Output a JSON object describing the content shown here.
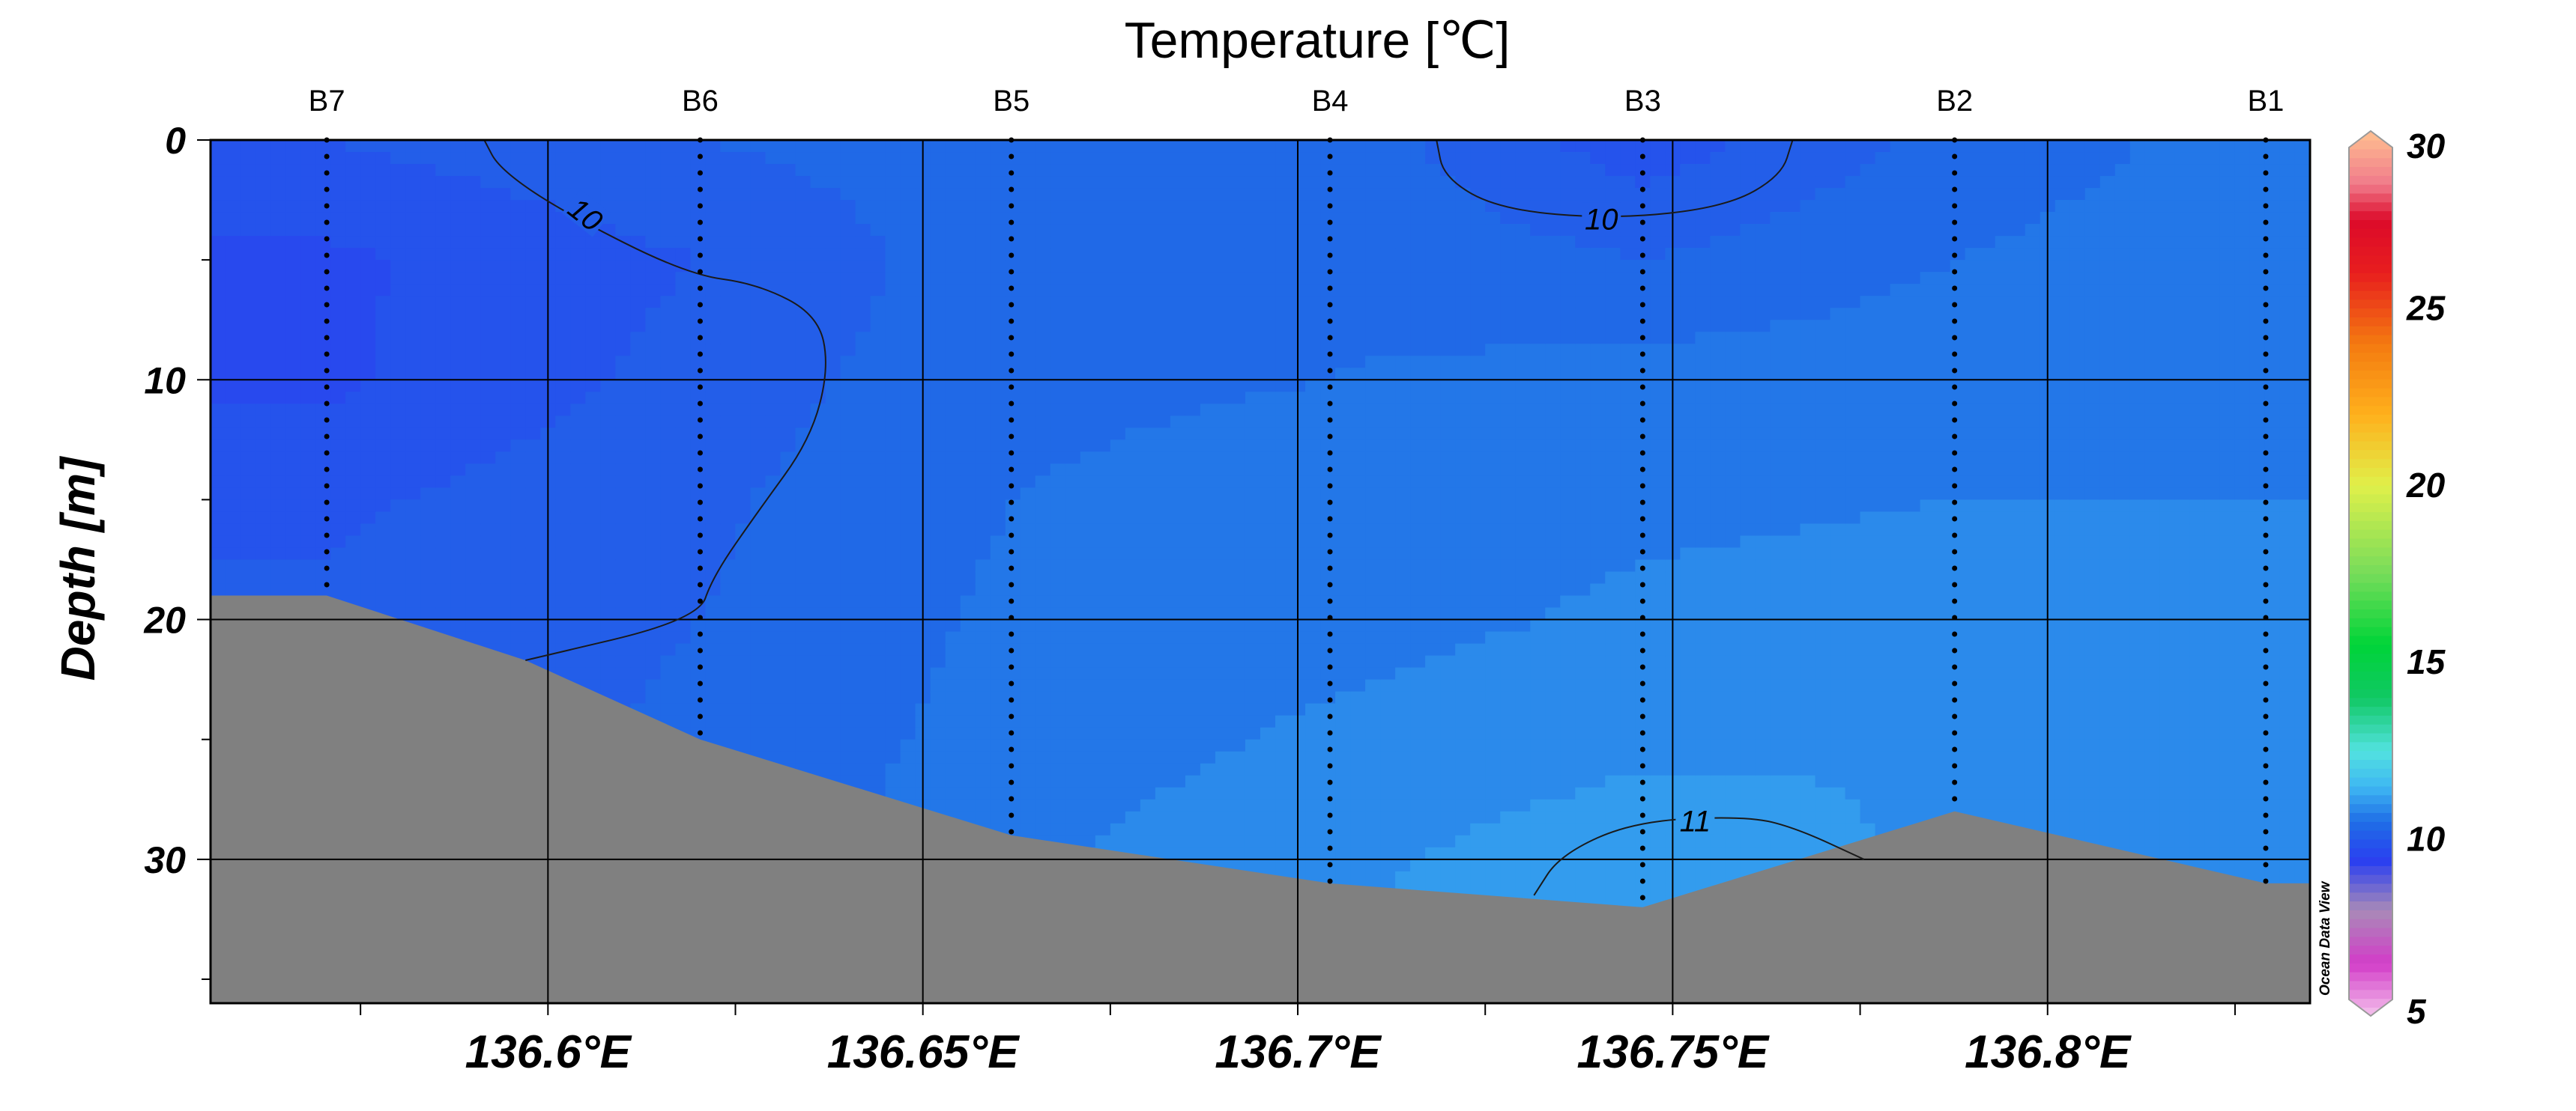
{
  "chart_data": {
    "type": "heatmap",
    "title": "Temperature [℃]",
    "ylabel": "Depth [m]",
    "xlabel": "",
    "xlim": [
      136.555,
      136.835
    ],
    "ylim": [
      0,
      36
    ],
    "y_inverted": true,
    "grid": true,
    "x_ticks": [
      {
        "value": 136.6,
        "label": "136.6°E"
      },
      {
        "value": 136.65,
        "label": "136.65°E"
      },
      {
        "value": 136.7,
        "label": "136.7°E"
      },
      {
        "value": 136.75,
        "label": "136.75°E"
      },
      {
        "value": 136.8,
        "label": "136.8°E"
      }
    ],
    "y_ticks": [
      {
        "value": 0,
        "label": "0"
      },
      {
        "value": 10,
        "label": "10"
      },
      {
        "value": 20,
        "label": "20"
      },
      {
        "value": 30,
        "label": "30"
      }
    ],
    "stations": [
      {
        "name": "B7",
        "lon": 136.5705,
        "bottom_depth": 19
      },
      {
        "name": "B6",
        "lon": 136.6203,
        "bottom_depth": 25
      },
      {
        "name": "B5",
        "lon": 136.6618,
        "bottom_depth": 29
      },
      {
        "name": "B4",
        "lon": 136.7043,
        "bottom_depth": 31
      },
      {
        "name": "B3",
        "lon": 136.746,
        "bottom_depth": 32
      },
      {
        "name": "B2",
        "lon": 136.7876,
        "bottom_depth": 28
      },
      {
        "name": "B1",
        "lon": 136.8291,
        "bottom_depth": 31
      }
    ],
    "bathymetry": [
      [
        136.555,
        19
      ],
      [
        136.5705,
        19
      ],
      [
        136.597,
        21.7
      ],
      [
        136.6203,
        25
      ],
      [
        136.6618,
        29
      ],
      [
        136.7043,
        31
      ],
      [
        136.746,
        32
      ],
      [
        136.7876,
        28
      ],
      [
        136.8291,
        31
      ],
      [
        136.835,
        31
      ]
    ],
    "colorbar": {
      "min": 5,
      "max": 30,
      "ticks": [
        {
          "value": 5,
          "label": "5"
        },
        {
          "value": 10,
          "label": "10"
        },
        {
          "value": 15,
          "label": "15"
        },
        {
          "value": 20,
          "label": "20"
        },
        {
          "value": 25,
          "label": "25"
        },
        {
          "value": 30,
          "label": "30"
        }
      ],
      "stops": [
        {
          "v": 5,
          "c": "#f4c2ec"
        },
        {
          "v": 6.5,
          "c": "#d23cc8"
        },
        {
          "v": 8,
          "c": "#a88ab8"
        },
        {
          "v": 9.4,
          "c": "#2a3ff0"
        },
        {
          "v": 10.5,
          "c": "#1f6ee6"
        },
        {
          "v": 11.5,
          "c": "#3fb8f2"
        },
        {
          "v": 12.5,
          "c": "#52e2e0"
        },
        {
          "v": 14,
          "c": "#10c864"
        },
        {
          "v": 15.5,
          "c": "#00d438"
        },
        {
          "v": 17.5,
          "c": "#76dc5a"
        },
        {
          "v": 20,
          "c": "#e0f04a"
        },
        {
          "v": 22,
          "c": "#ffb01c"
        },
        {
          "v": 24,
          "c": "#f47a10"
        },
        {
          "v": 26,
          "c": "#e81e1e"
        },
        {
          "v": 27.5,
          "c": "#dc0a2a"
        },
        {
          "v": 28.5,
          "c": "#f07a8a"
        },
        {
          "v": 30,
          "c": "#ffc090"
        }
      ]
    },
    "contours": [
      {
        "level": 10,
        "label": "10",
        "points": [
          [
            136.597,
            21.7
          ],
          [
            136.62,
            20.0
          ],
          [
            136.622,
            18.2
          ],
          [
            136.628,
            15.5
          ],
          [
            136.635,
            12.5
          ],
          [
            136.6375,
            9.5
          ],
          [
            136.636,
            7.3
          ],
          [
            136.628,
            6.0
          ],
          [
            136.6185,
            5.6
          ],
          [
            136.602,
            3.0
          ],
          [
            136.5935,
            1.2
          ],
          [
            136.5915,
            0
          ]
        ]
      },
      {
        "level": 10,
        "label": "10",
        "points": [
          [
            136.7185,
            0
          ],
          [
            136.7195,
            1.6
          ],
          [
            136.727,
            2.9
          ],
          [
            136.742,
            3.3
          ],
          [
            136.757,
            2.8
          ],
          [
            136.7645,
            1.5
          ],
          [
            136.766,
            0
          ]
        ]
      },
      {
        "level": 11,
        "label": "11",
        "points": [
          [
            136.7315,
            31.5
          ],
          [
            136.735,
            29.8
          ],
          [
            136.745,
            28.4
          ],
          [
            136.76,
            28.2
          ],
          [
            136.7665,
            28.7
          ],
          [
            136.7755,
            30.0
          ]
        ]
      }
    ],
    "temperature_field": {
      "unit": "℃",
      "depths": [
        0,
        5,
        10,
        15,
        20,
        25,
        30,
        35
      ],
      "stations_lon": [
        136.5705,
        136.6203,
        136.6618,
        136.7043,
        136.746,
        136.7876,
        136.8291
      ],
      "values": [
        [
          10.0,
          10.25,
          10.4,
          10.4,
          9.85,
          10.35,
          10.6
        ],
        [
          9.7,
          10.0,
          10.4,
          10.45,
          10.25,
          10.5,
          10.65
        ],
        [
          9.7,
          10.1,
          10.45,
          10.5,
          10.6,
          10.65,
          10.7
        ],
        [
          9.95,
          10.2,
          10.5,
          10.6,
          10.7,
          10.75,
          10.75
        ],
        [
          10.05,
          10.25,
          10.55,
          10.65,
          10.8,
          10.85,
          10.8
        ],
        [
          10.1,
          10.3,
          10.6,
          10.8,
          10.95,
          11.0,
          10.8
        ],
        [
          10.1,
          10.3,
          10.7,
          10.95,
          11.15,
          10.95,
          10.8
        ],
        [
          10.1,
          10.3,
          10.7,
          11.0,
          11.2,
          11.0,
          10.8
        ]
      ]
    },
    "credit": "Ocean Data View"
  }
}
